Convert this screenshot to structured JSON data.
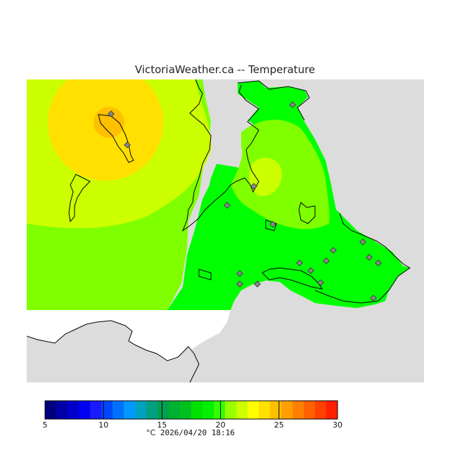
{
  "title": "VictoriaWeather.ca -- Temperature",
  "legend": {
    "unit": "°C",
    "ticks": [
      "5",
      "10",
      "15",
      "20",
      "25",
      "30"
    ],
    "colors": [
      "#00007f",
      "#0000a6",
      "#0000cc",
      "#0000f2",
      "#1a1aff",
      "#0047ff",
      "#0070ff",
      "#0099ff",
      "#00a0c0",
      "#00a080",
      "#00a050",
      "#00b030",
      "#00c020",
      "#00e000",
      "#00f000",
      "#33ff00",
      "#99ff00",
      "#ccff00",
      "#ffff00",
      "#ffe000",
      "#ffc000",
      "#ffa000",
      "#ff8000",
      "#ff6000",
      "#ff4000",
      "#ff2000"
    ]
  },
  "timestamp": "2026/04/20 18:16",
  "map_colors": {
    "land_outside": "#dcdcdc",
    "water": "#ffffff",
    "t17_20": "#00ff00",
    "t20_21": "#7fff00",
    "t21_23": "#ccff00",
    "t23_24": "#ffff00",
    "t24_25": "#ffe000",
    "t25_26": "#ffc000",
    "station": "#888888"
  },
  "stations_count_label": ""
}
